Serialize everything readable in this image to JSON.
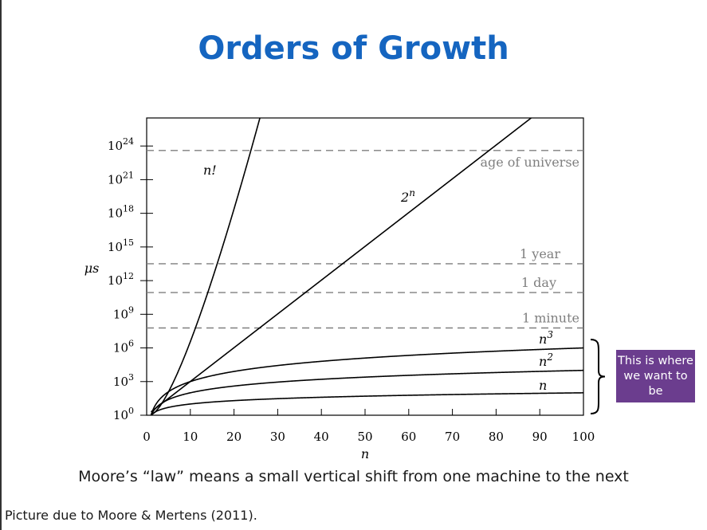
{
  "title": "Orders of Growth",
  "caption": "Moore’s “law” means a small vertical shift from one machine to the next",
  "credit": "Picture due to Moore & Mertens (2011).",
  "callout": {
    "text": "This is where we want to be",
    "color": "#6b3d8e"
  },
  "colors": {
    "title": "#1565c0",
    "reference_lines": "#7f7f7f",
    "curves": "#000000"
  },
  "chart_data": {
    "type": "line",
    "xlabel": "n",
    "ylabel": "μs",
    "xlim": [
      0,
      100
    ],
    "ylim_log10": [
      0,
      26.5
    ],
    "y_scale": "log",
    "x_ticks": [
      0,
      10,
      20,
      30,
      40,
      50,
      60,
      70,
      80,
      90,
      100
    ],
    "y_ticks": [
      {
        "exp": 0,
        "label_base": "10",
        "label_exp": "0"
      },
      {
        "exp": 3,
        "label_base": "10",
        "label_exp": "3"
      },
      {
        "exp": 6,
        "label_base": "10",
        "label_exp": "6"
      },
      {
        "exp": 9,
        "label_base": "10",
        "label_exp": "9"
      },
      {
        "exp": 12,
        "label_base": "10",
        "label_exp": "12"
      },
      {
        "exp": 15,
        "label_base": "10",
        "label_exp": "15"
      },
      {
        "exp": 18,
        "label_base": "10",
        "label_exp": "18"
      },
      {
        "exp": 21,
        "label_base": "10",
        "label_exp": "21"
      },
      {
        "exp": 24,
        "label_base": "10",
        "label_exp": "24"
      }
    ],
    "series": [
      {
        "name": "n",
        "label_base": "n",
        "label_exp": "",
        "function": "n"
      },
      {
        "name": "n2",
        "label_base": "n",
        "label_exp": "2",
        "function": "n^2"
      },
      {
        "name": "n3",
        "label_base": "n",
        "label_exp": "3",
        "function": "n^3"
      },
      {
        "name": "2n",
        "label_base": "2",
        "label_exp": "n",
        "function": "2^n"
      },
      {
        "name": "n!",
        "label_base": "n!",
        "label_exp": "",
        "function": "n!"
      }
    ],
    "reference_lines": [
      {
        "label": "age of universe",
        "log10_value": 23.6
      },
      {
        "label": "1 year",
        "log10_value": 13.5
      },
      {
        "label": "1 day",
        "log10_value": 10.94
      },
      {
        "label": "1 minute",
        "log10_value": 7.78
      }
    ],
    "grid": false
  }
}
